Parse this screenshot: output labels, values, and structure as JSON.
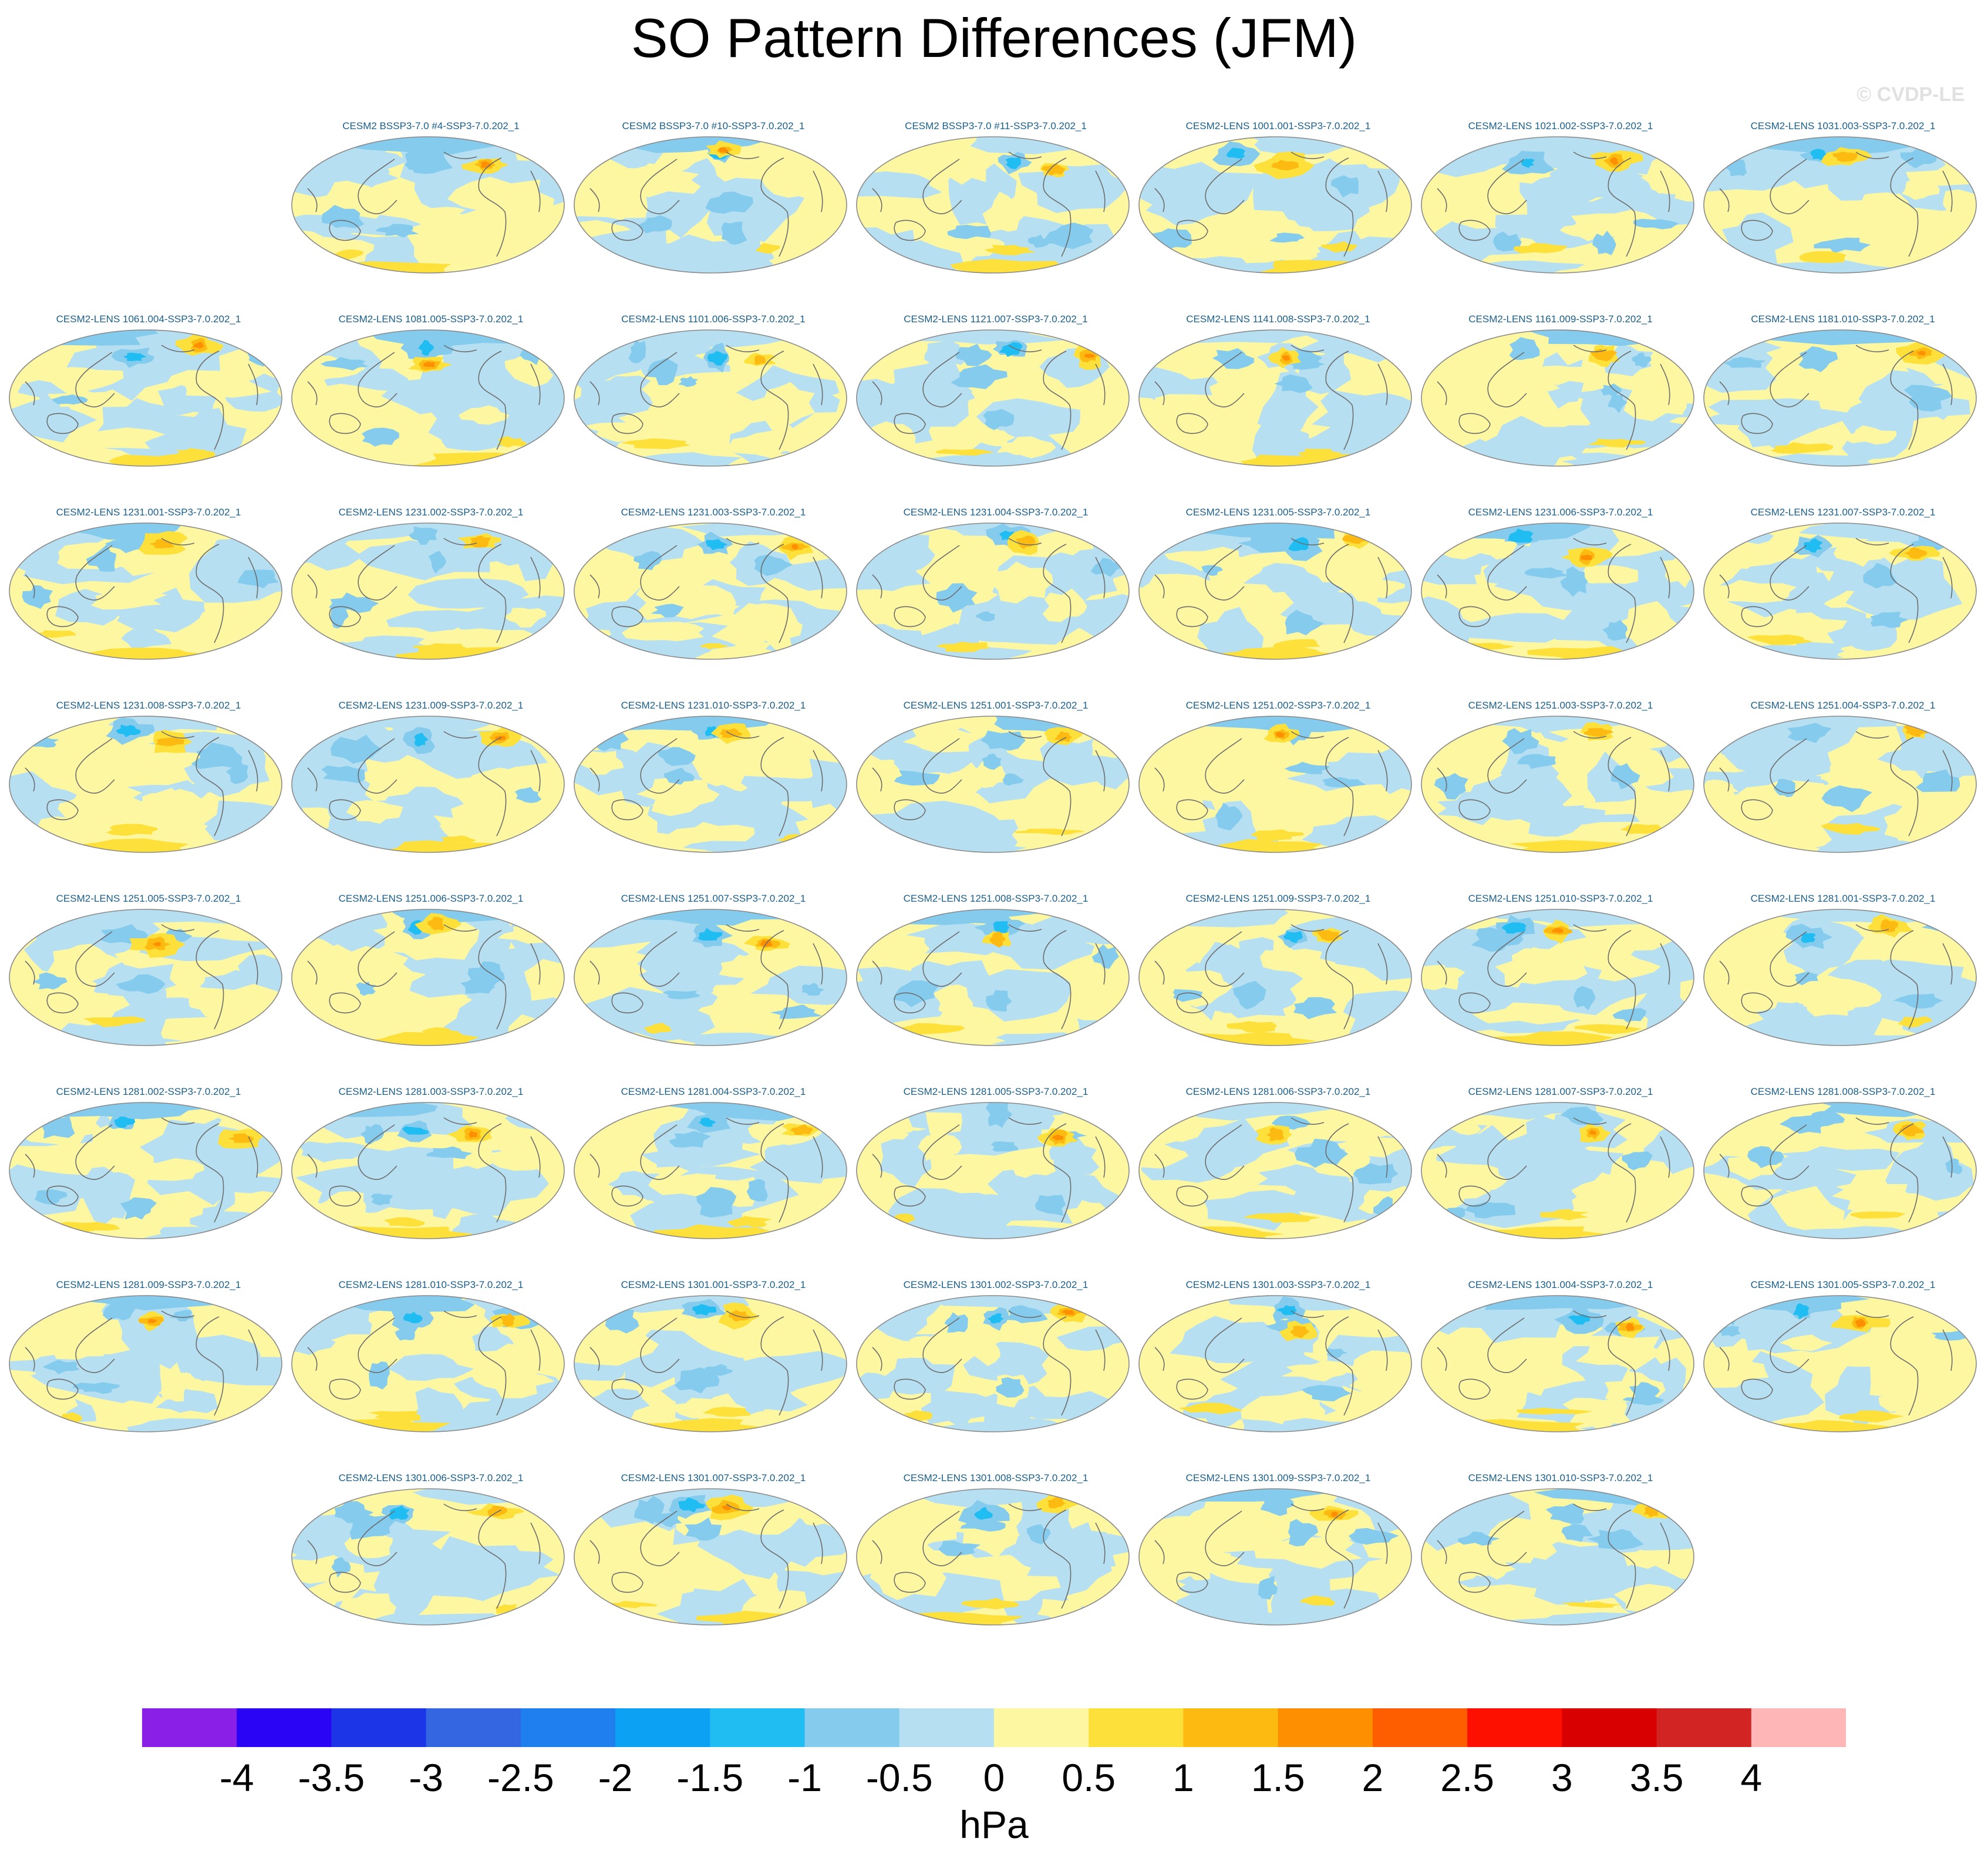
{
  "title": "SO Pattern Differences (JFM)",
  "watermark": "© CVDP-LE",
  "colorbar": {
    "units": "hPa",
    "tick_labels": [
      "-4",
      "-3.5",
      "-3",
      "-2.5",
      "-2",
      "-1.5",
      "-1",
      "-0.5",
      "0",
      "0.5",
      "1",
      "1.5",
      "2",
      "2.5",
      "3",
      "3.5",
      "4"
    ],
    "colors": [
      "#8a1fe8",
      "#2a04f5",
      "#1c35e6",
      "#3366e0",
      "#1f7fef",
      "#0da1f4",
      "#20bdf3",
      "#84cbee",
      "#b6e0f2",
      "#fef7a2",
      "#fee03a",
      "#fdba11",
      "#fd8f00",
      "#fe5e00",
      "#fe1000",
      "#d80000",
      "#d32424",
      "#feb7b6"
    ],
    "range": [
      -4,
      4
    ]
  },
  "panels": [
    {
      "label": "CESM2 BSSP3-7.0 #4-SSP3-7.0.202_1"
    },
    {
      "label": "CESM2 BSSP3-7.0 #10-SSP3-7.0.202_1"
    },
    {
      "label": "CESM2 BSSP3-7.0 #11-SSP3-7.0.202_1"
    },
    {
      "label": "CESM2-LENS 1001.001-SSP3-7.0.202_1"
    },
    {
      "label": "CESM2-LENS 1021.002-SSP3-7.0.202_1"
    },
    {
      "label": "CESM2-LENS 1031.003-SSP3-7.0.202_1"
    },
    {
      "label": "CESM2-LENS 1061.004-SSP3-7.0.202_1"
    },
    {
      "label": "CESM2-LENS 1081.005-SSP3-7.0.202_1"
    },
    {
      "label": "CESM2-LENS 1101.006-SSP3-7.0.202_1"
    },
    {
      "label": "CESM2-LENS 1121.007-SSP3-7.0.202_1"
    },
    {
      "label": "CESM2-LENS 1141.008-SSP3-7.0.202_1"
    },
    {
      "label": "CESM2-LENS 1161.009-SSP3-7.0.202_1"
    },
    {
      "label": "CESM2-LENS 1181.010-SSP3-7.0.202_1"
    },
    {
      "label": "CESM2-LENS 1231.001-SSP3-7.0.202_1"
    },
    {
      "label": "CESM2-LENS 1231.002-SSP3-7.0.202_1"
    },
    {
      "label": "CESM2-LENS 1231.003-SSP3-7.0.202_1"
    },
    {
      "label": "CESM2-LENS 1231.004-SSP3-7.0.202_1"
    },
    {
      "label": "CESM2-LENS 1231.005-SSP3-7.0.202_1"
    },
    {
      "label": "CESM2-LENS 1231.006-SSP3-7.0.202_1"
    },
    {
      "label": "CESM2-LENS 1231.007-SSP3-7.0.202_1"
    },
    {
      "label": "CESM2-LENS 1231.008-SSP3-7.0.202_1"
    },
    {
      "label": "CESM2-LENS 1231.009-SSP3-7.0.202_1"
    },
    {
      "label": "CESM2-LENS 1231.010-SSP3-7.0.202_1"
    },
    {
      "label": "CESM2-LENS 1251.001-SSP3-7.0.202_1"
    },
    {
      "label": "CESM2-LENS 1251.002-SSP3-7.0.202_1"
    },
    {
      "label": "CESM2-LENS 1251.003-SSP3-7.0.202_1"
    },
    {
      "label": "CESM2-LENS 1251.004-SSP3-7.0.202_1"
    },
    {
      "label": "CESM2-LENS 1251.005-SSP3-7.0.202_1"
    },
    {
      "label": "CESM2-LENS 1251.006-SSP3-7.0.202_1"
    },
    {
      "label": "CESM2-LENS 1251.007-SSP3-7.0.202_1"
    },
    {
      "label": "CESM2-LENS 1251.008-SSP3-7.0.202_1"
    },
    {
      "label": "CESM2-LENS 1251.009-SSP3-7.0.202_1"
    },
    {
      "label": "CESM2-LENS 1251.010-SSP3-7.0.202_1"
    },
    {
      "label": "CESM2-LENS 1281.001-SSP3-7.0.202_1"
    },
    {
      "label": "CESM2-LENS 1281.002-SSP3-7.0.202_1"
    },
    {
      "label": "CESM2-LENS 1281.003-SSP3-7.0.202_1"
    },
    {
      "label": "CESM2-LENS 1281.004-SSP3-7.0.202_1"
    },
    {
      "label": "CESM2-LENS 1281.005-SSP3-7.0.202_1"
    },
    {
      "label": "CESM2-LENS 1281.006-SSP3-7.0.202_1"
    },
    {
      "label": "CESM2-LENS 1281.007-SSP3-7.0.202_1"
    },
    {
      "label": "CESM2-LENS 1281.008-SSP3-7.0.202_1"
    },
    {
      "label": "CESM2-LENS 1281.009-SSP3-7.0.202_1"
    },
    {
      "label": "CESM2-LENS 1281.010-SSP3-7.0.202_1"
    },
    {
      "label": "CESM2-LENS 1301.001-SSP3-7.0.202_1"
    },
    {
      "label": "CESM2-LENS 1301.002-SSP3-7.0.202_1"
    },
    {
      "label": "CESM2-LENS 1301.003-SSP3-7.0.202_1"
    },
    {
      "label": "CESM2-LENS 1301.004-SSP3-7.0.202_1"
    },
    {
      "label": "CESM2-LENS 1301.005-SSP3-7.0.202_1"
    },
    {
      "label": "CESM2-LENS 1301.006-SSP3-7.0.202_1"
    },
    {
      "label": "CESM2-LENS 1301.007-SSP3-7.0.202_1"
    },
    {
      "label": "CESM2-LENS 1301.008-SSP3-7.0.202_1"
    },
    {
      "label": "CESM2-LENS 1301.009-SSP3-7.0.202_1"
    },
    {
      "label": "CESM2-LENS 1301.010-SSP3-7.0.202_1"
    }
  ]
}
